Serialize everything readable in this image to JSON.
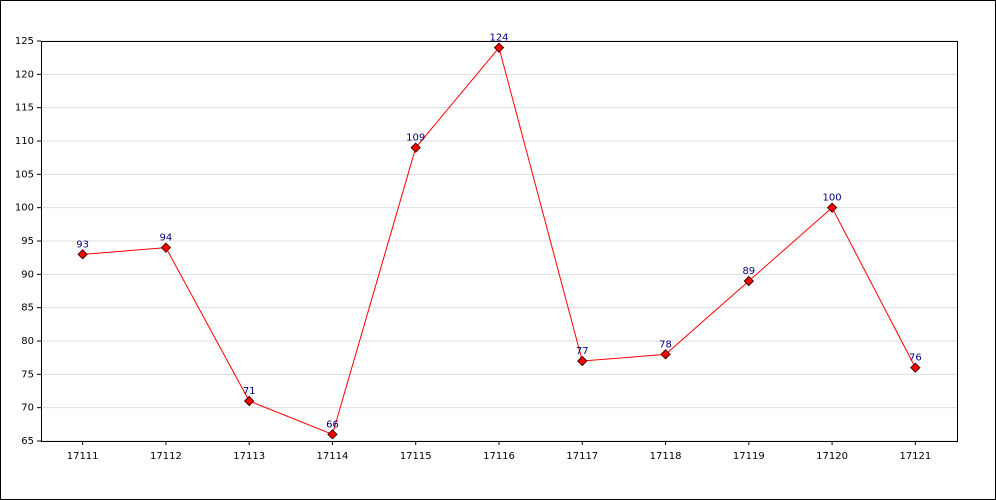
{
  "chart_data": {
    "type": "line",
    "categories": [
      "17111",
      "17112",
      "17113",
      "17114",
      "17115",
      "17116",
      "17117",
      "17118",
      "17119",
      "17120",
      "17121"
    ],
    "values": [
      93,
      94,
      71,
      66,
      109,
      124,
      77,
      78,
      89,
      100,
      76
    ],
    "color": "#ff0000",
    "ylim": [
      65,
      125
    ],
    "yticks": [
      65,
      70,
      75,
      80,
      85,
      90,
      95,
      100,
      105,
      110,
      115,
      120,
      125
    ],
    "grid": true
  }
}
